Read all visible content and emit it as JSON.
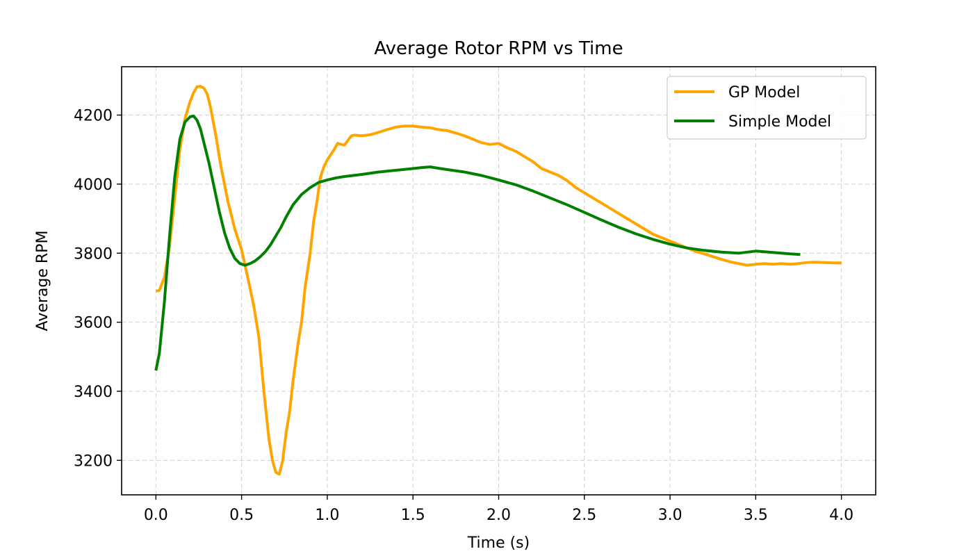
{
  "chart_data": {
    "type": "line",
    "title": "Average Rotor RPM vs Time",
    "xlabel": "Time (s)",
    "ylabel": "Average RPM",
    "xlim": [
      -0.2,
      4.2
    ],
    "ylim": [
      3100,
      4340
    ],
    "xticks": [
      0.0,
      0.5,
      1.0,
      1.5,
      2.0,
      2.5,
      3.0,
      3.5,
      4.0
    ],
    "xtick_labels": [
      "0.0",
      "0.5",
      "1.0",
      "1.5",
      "2.0",
      "2.5",
      "3.0",
      "3.5",
      "4.0"
    ],
    "yticks": [
      3200,
      3400,
      3600,
      3800,
      4000,
      4200
    ],
    "ytick_labels": [
      "3200",
      "3400",
      "3600",
      "3800",
      "4000",
      "4200"
    ],
    "grid": true,
    "legend_position": "top-right",
    "series": [
      {
        "name": "GP Model",
        "color": "#ffa500",
        "x": [
          0.0,
          0.02,
          0.05,
          0.08,
          0.11,
          0.14,
          0.17,
          0.2,
          0.22,
          0.24,
          0.26,
          0.28,
          0.3,
          0.32,
          0.35,
          0.38,
          0.42,
          0.46,
          0.5,
          0.54,
          0.57,
          0.6,
          0.63,
          0.66,
          0.68,
          0.7,
          0.72,
          0.74,
          0.76,
          0.78,
          0.8,
          0.83,
          0.85,
          0.87,
          0.9,
          0.92,
          0.94,
          0.96,
          0.98,
          1.0,
          1.02,
          1.04,
          1.06,
          1.08,
          1.1,
          1.14,
          1.16,
          1.2,
          1.25,
          1.3,
          1.35,
          1.4,
          1.45,
          1.5,
          1.55,
          1.6,
          1.65,
          1.7,
          1.75,
          1.8,
          1.85,
          1.9,
          1.95,
          2.0,
          2.05,
          2.1,
          2.15,
          2.2,
          2.25,
          2.3,
          2.35,
          2.4,
          2.45,
          2.5,
          2.55,
          2.6,
          2.65,
          2.7,
          2.75,
          2.8,
          2.85,
          2.9,
          2.95,
          3.0,
          3.05,
          3.1,
          3.15,
          3.2,
          3.25,
          3.3,
          3.35,
          3.4,
          3.45,
          3.5,
          3.55,
          3.6,
          3.65,
          3.7,
          3.75,
          3.8,
          3.85,
          3.9,
          3.95,
          4.0
        ],
        "values": [
          3690,
          3692,
          3730,
          3820,
          3960,
          4100,
          4190,
          4240,
          4265,
          4282,
          4283,
          4278,
          4260,
          4220,
          4140,
          4050,
          3950,
          3870,
          3810,
          3720,
          3650,
          3560,
          3400,
          3260,
          3200,
          3165,
          3160,
          3200,
          3280,
          3340,
          3430,
          3540,
          3600,
          3700,
          3800,
          3890,
          3950,
          4020,
          4050,
          4070,
          4085,
          4100,
          4118,
          4115,
          4113,
          4140,
          4142,
          4140,
          4143,
          4150,
          4158,
          4165,
          4168,
          4168,
          4165,
          4163,
          4158,
          4155,
          4148,
          4140,
          4130,
          4120,
          4115,
          4118,
          4105,
          4095,
          4080,
          4065,
          4045,
          4035,
          4025,
          4010,
          3990,
          3975,
          3960,
          3945,
          3930,
          3915,
          3900,
          3885,
          3870,
          3855,
          3845,
          3835,
          3825,
          3815,
          3805,
          3798,
          3790,
          3782,
          3775,
          3770,
          3765,
          3768,
          3770,
          3768,
          3770,
          3768,
          3770,
          3773,
          3774,
          3773,
          3772,
          3772
        ]
      },
      {
        "name": "Simple Model",
        "color": "#008000",
        "x": [
          0.0,
          0.02,
          0.05,
          0.08,
          0.11,
          0.14,
          0.17,
          0.2,
          0.22,
          0.24,
          0.26,
          0.28,
          0.31,
          0.34,
          0.37,
          0.4,
          0.43,
          0.46,
          0.49,
          0.52,
          0.55,
          0.58,
          0.61,
          0.64,
          0.67,
          0.7,
          0.73,
          0.76,
          0.8,
          0.85,
          0.9,
          0.95,
          1.0,
          1.05,
          1.1,
          1.2,
          1.3,
          1.4,
          1.5,
          1.55,
          1.6,
          1.65,
          1.7,
          1.8,
          1.9,
          2.0,
          2.1,
          2.2,
          2.3,
          2.4,
          2.5,
          2.6,
          2.7,
          2.8,
          2.9,
          3.0,
          3.1,
          3.2,
          3.3,
          3.4,
          3.5,
          3.6,
          3.7,
          3.76
        ],
        "values": [
          3460,
          3510,
          3660,
          3850,
          4020,
          4130,
          4180,
          4195,
          4197,
          4185,
          4160,
          4120,
          4060,
          3990,
          3920,
          3860,
          3815,
          3785,
          3770,
          3765,
          3770,
          3778,
          3790,
          3805,
          3825,
          3850,
          3875,
          3905,
          3940,
          3970,
          3990,
          4005,
          4012,
          4018,
          4022,
          4028,
          4035,
          4040,
          4045,
          4048,
          4050,
          4046,
          4042,
          4035,
          4025,
          4012,
          3998,
          3980,
          3960,
          3940,
          3918,
          3896,
          3875,
          3856,
          3840,
          3826,
          3815,
          3808,
          3803,
          3800,
          3806,
          3802,
          3798,
          3796
        ]
      }
    ]
  }
}
